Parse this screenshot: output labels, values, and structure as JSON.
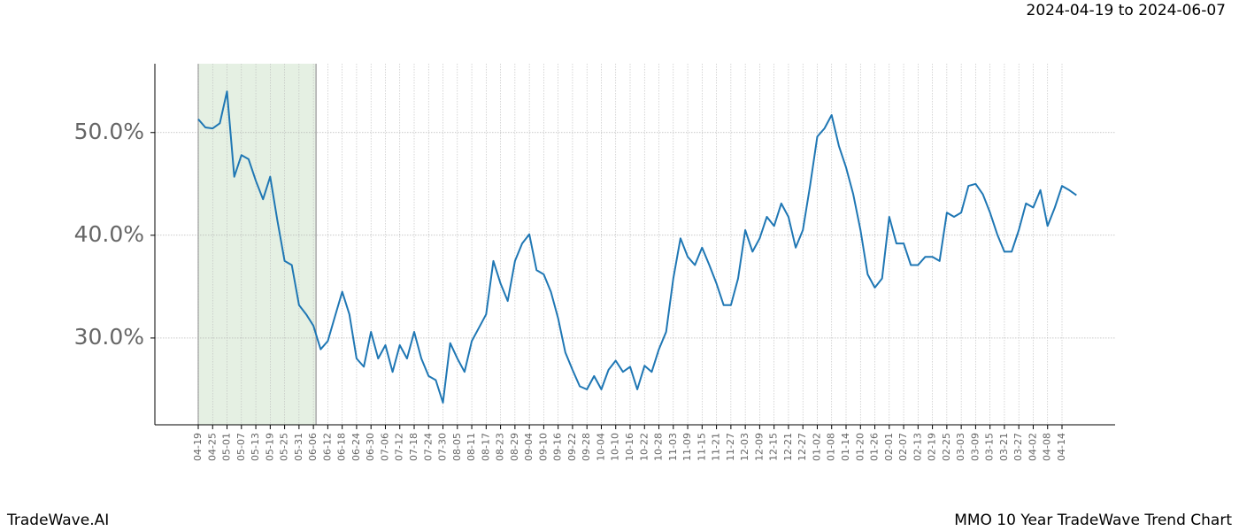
{
  "chart_data": {
    "type": "line",
    "title": "2024-04-19 to 2024-06-07",
    "footer_left": "TradeWave.AI",
    "footer_right": "MMO 10 Year TradeWave Trend Chart",
    "categories": [
      "04-19",
      null,
      "04-25",
      null,
      "05-01",
      null,
      "05-07",
      null,
      "05-13",
      null,
      "05-19",
      null,
      "05-25",
      null,
      "05-31",
      null,
      "06-06",
      null,
      "06-12",
      null,
      "06-18",
      null,
      "06-24",
      null,
      "06-30",
      null,
      "07-06",
      null,
      "07-12",
      null,
      "07-18",
      null,
      "07-24",
      null,
      "07-30",
      null,
      "08-05",
      null,
      "08-11",
      null,
      "08-17",
      null,
      "08-23",
      null,
      "08-29",
      null,
      "09-04",
      null,
      "09-10",
      null,
      "09-16",
      null,
      "09-22",
      null,
      "09-28",
      null,
      "10-04",
      null,
      "10-10",
      null,
      "10-16",
      null,
      "10-22",
      null,
      "10-28",
      null,
      "11-03",
      null,
      "11-09",
      null,
      "11-15",
      null,
      "11-21",
      null,
      "11-27",
      null,
      "12-03",
      null,
      "12-09",
      null,
      "12-15",
      null,
      "12-21",
      null,
      "12-27",
      null,
      "01-02",
      null,
      "01-08",
      null,
      "01-14",
      null,
      "01-20",
      null,
      "01-26",
      null,
      "02-01",
      null,
      "02-07",
      null,
      "02-13",
      null,
      "02-19",
      null,
      "02-25",
      null,
      "03-03",
      null,
      "03-09",
      null,
      "03-15",
      null,
      "03-21",
      null,
      "03-27",
      null,
      "04-02",
      null,
      "04-08",
      null,
      "04-14",
      null,
      null
    ],
    "series": [
      {
        "color": "#1f77b4",
        "values": [
          51.3,
          50.5,
          50.4,
          50.9,
          54.0,
          45.7,
          47.8,
          47.4,
          45.3,
          43.5,
          45.7,
          41.4,
          37.5,
          37.1,
          33.2,
          32.3,
          31.2,
          28.9,
          29.7,
          32.1,
          34.5,
          32.3,
          28.0,
          27.2,
          30.6,
          28.0,
          29.3,
          26.7,
          29.3,
          28.0,
          30.6,
          28.0,
          26.3,
          25.9,
          23.7,
          29.5,
          28.0,
          26.7,
          29.7,
          31.0,
          32.3,
          37.5,
          35.3,
          33.6,
          37.5,
          39.2,
          40.1,
          36.6,
          36.2,
          34.5,
          31.9,
          28.6,
          26.9,
          25.3,
          25.0,
          26.3,
          25.0,
          26.9,
          27.8,
          26.7,
          27.2,
          25.0,
          27.3,
          26.7,
          28.9,
          30.6,
          35.8,
          39.7,
          37.9,
          37.1,
          38.8,
          37.1,
          35.3,
          33.2,
          33.2,
          35.8,
          40.5,
          38.4,
          39.7,
          41.8,
          40.9,
          43.1,
          41.8,
          38.8,
          40.5,
          44.8,
          49.6,
          50.4,
          51.7,
          48.7,
          46.6,
          44.0,
          40.5,
          36.2,
          34.9,
          35.8,
          41.8,
          39.2,
          39.2,
          37.1,
          37.1,
          37.9,
          37.9,
          37.5,
          42.2,
          41.8,
          42.2,
          44.8,
          45.0,
          44.0,
          42.2,
          40.1,
          38.4,
          38.4,
          40.5,
          43.1,
          42.7,
          44.4,
          40.9,
          42.7,
          44.8,
          44.4,
          43.9
        ]
      }
    ],
    "ylim": [
      21.55,
      56.7
    ],
    "yticks": [
      {
        "value": 30,
        "label": "30.0%"
      },
      {
        "value": 40,
        "label": "40.0%"
      },
      {
        "value": 50,
        "label": "50.0%"
      }
    ],
    "highlight": {
      "from": "04-19",
      "to": "06-06",
      "color": "#e5f0e3"
    },
    "grid": true
  }
}
